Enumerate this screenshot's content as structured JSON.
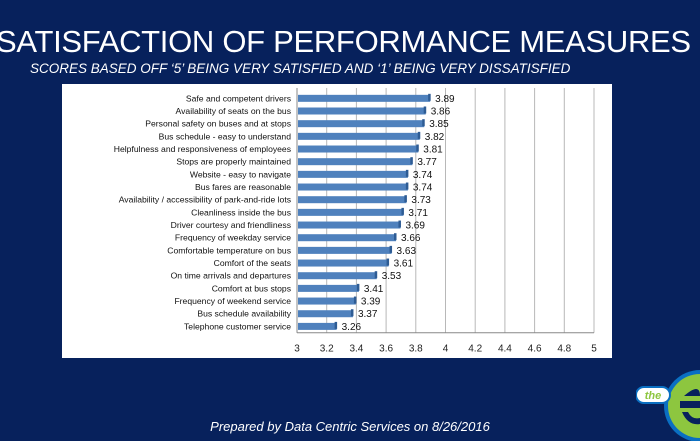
{
  "title": "SATISFACTION OF PERFORMANCE MEASURES",
  "subtitle": "SCORES BASED OFF ‘5’ BEING VERY SATISFIED AND ‘1’ BEING VERY DISSATISFIED",
  "footer": "Prepared by Data Centric Services on 8/26/2016",
  "logo": {
    "text": "the e",
    "colors": {
      "green": "#8dc63f",
      "blue": "#0a6fc2"
    }
  },
  "chart_data": {
    "type": "bar",
    "orientation": "horizontal",
    "categories": [
      "Safe and competent drivers",
      "Availability of seats on the bus",
      "Personal safety on buses and at stops",
      "Bus schedule - easy to understand",
      "Helpfulness and responsiveness of employees",
      "Stops are properly maintained",
      "Website - easy to navigate",
      "Bus fares are reasonable",
      "Availability / accessibility of park-and-ride lots",
      "Cleanliness inside the bus",
      "Driver courtesy and friendliness",
      "Frequency of weekday service",
      "Comfortable temperature on bus",
      "Comfort of the seats",
      "On time arrivals and departures",
      "Comfort at bus stops",
      "Frequency of weekend service",
      "Bus schedule availability",
      "Telephone customer service"
    ],
    "values": [
      3.89,
      3.86,
      3.85,
      3.82,
      3.81,
      3.77,
      3.74,
      3.74,
      3.73,
      3.71,
      3.69,
      3.66,
      3.63,
      3.61,
      3.53,
      3.41,
      3.39,
      3.37,
      3.26
    ],
    "data_labels": [
      "3.89",
      "3.86",
      "3.85",
      "3.82",
      "3.81",
      "3.77",
      "3.74",
      "3.74",
      "3.73",
      "3.71",
      "3.69",
      "3.66",
      "3.63",
      "3.61",
      "3.53",
      "3.41",
      "3.39",
      "3.37",
      "3.26"
    ],
    "xticks": [
      "3",
      "3.2",
      "3.4",
      "3.6",
      "3.8",
      "4",
      "4.2",
      "4.4",
      "4.6",
      "4.8",
      "5"
    ],
    "xlim": [
      3,
      5
    ],
    "grid": true,
    "bar_color": "#4f81bd"
  }
}
